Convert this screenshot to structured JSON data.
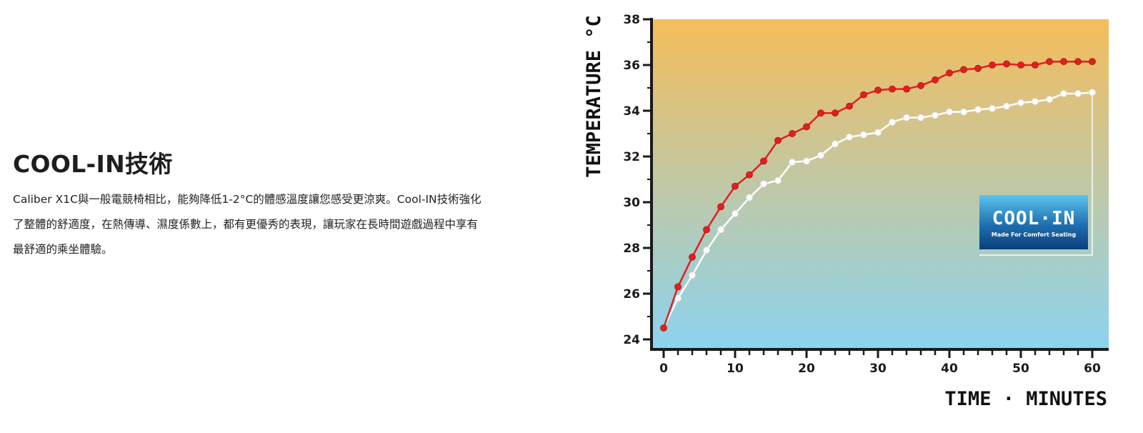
{
  "section": {
    "title": "COOL-IN技術",
    "paragraph_lines": [
      "Caliber X1C與一般電競椅相比，能夠降低1-2°C的體感溫度讓您感受更涼爽。Cool-IN技術強化",
      "了整體的舒適度，在熱傳導、濕度係數上，都有更優秀的表現，讓玩家在長時間遊戲過程中享有",
      "最舒適的乘坐體驗。"
    ]
  },
  "chart_data": {
    "type": "line",
    "title": "",
    "xlabel": "TIME · MINUTES",
    "ylabel": "TEMPERATURE °C",
    "xlim": [
      0,
      60
    ],
    "ylim": [
      24,
      38
    ],
    "x_ticks": [
      0,
      10,
      20,
      30,
      40,
      50,
      60
    ],
    "y_ticks": [
      24,
      26,
      28,
      30,
      32,
      34,
      36,
      38
    ],
    "grid": false,
    "background_gradient": {
      "top": "#f5bd5b",
      "bottom": "#8bd3f0"
    },
    "x": [
      0,
      2,
      4,
      6,
      8,
      10,
      12,
      14,
      16,
      18,
      20,
      22,
      24,
      26,
      28,
      30,
      32,
      34,
      36,
      38,
      40,
      42,
      44,
      46,
      48,
      50,
      52,
      54,
      56,
      58,
      60
    ],
    "series": [
      {
        "color": "#e02020",
        "values": [
          24.5,
          26.3,
          27.6,
          28.8,
          29.8,
          30.7,
          31.2,
          31.8,
          32.7,
          33.0,
          33.3,
          33.9,
          33.9,
          34.2,
          34.7,
          34.9,
          34.95,
          34.95,
          35.1,
          35.35,
          35.65,
          35.8,
          35.85,
          36.0,
          36.05,
          36.0,
          36.0,
          36.15,
          36.15,
          36.15,
          36.15
        ]
      },
      {
        "color": "#ffffff",
        "values": [
          24.5,
          25.8,
          26.8,
          27.9,
          28.8,
          29.5,
          30.2,
          30.8,
          30.95,
          31.75,
          31.8,
          32.05,
          32.55,
          32.85,
          32.95,
          33.05,
          33.5,
          33.7,
          33.7,
          33.8,
          33.95,
          33.95,
          34.05,
          34.1,
          34.2,
          34.35,
          34.4,
          34.5,
          34.75,
          34.75,
          34.8
        ]
      }
    ],
    "logo": {
      "main": "COOL·IN",
      "sub": "Made For Comfort Seating"
    }
  }
}
